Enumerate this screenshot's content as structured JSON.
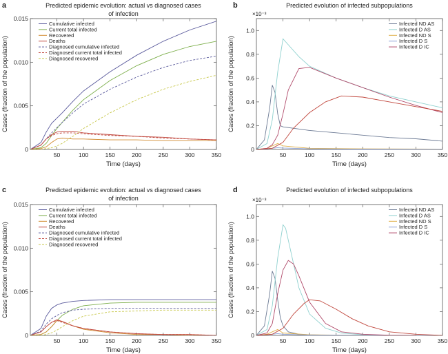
{
  "figure": {
    "width": 650,
    "height": 514
  },
  "colors": {
    "cumulative": "#5a5a9c",
    "current": "#7cae4a",
    "recovered": "#d08a2e",
    "deaths": "#c0463c",
    "nd_as": "#6c7a94",
    "d_as": "#8fd1cf",
    "nd_s": "#e0b04a",
    "d_s": "#8da2d6",
    "d_ic": "#b04a6a"
  },
  "chart_data": [
    {
      "id": "a",
      "type": "line",
      "panel": "a",
      "title": "Predicted epidemic evolution: actual vs diagnosed cases of infection",
      "title_lines": [
        "Predicted epidemic evolution: actual vs diagnosed cases",
        "of infection"
      ],
      "xlabel": "Time (days)",
      "ylabel": "Cases (fraction of the population)",
      "xlim": [
        0,
        350
      ],
      "ylim": [
        0,
        0.015
      ],
      "xticks": [
        50,
        100,
        150,
        200,
        250,
        300,
        350
      ],
      "yticks": [
        0,
        0.005,
        0.01,
        0.015
      ],
      "ytick_labels": [
        "0",
        "0.005",
        "0.010",
        "0.015"
      ],
      "exponent_label": "",
      "legend_position": "top-left",
      "series": [
        {
          "name": "Cumulative infected",
          "color": "#5a5a9c",
          "dash": false,
          "x": [
            0,
            20,
            30,
            40,
            50,
            60,
            80,
            100,
            150,
            200,
            250,
            300,
            350
          ],
          "y": [
            0,
            0.0008,
            0.002,
            0.003,
            0.0036,
            0.0042,
            0.0055,
            0.0067,
            0.0089,
            0.0108,
            0.0124,
            0.0137,
            0.0147
          ]
        },
        {
          "name": "Current total infected",
          "color": "#7cae4a",
          "dash": false,
          "x": [
            0,
            20,
            30,
            40,
            50,
            60,
            80,
            100,
            150,
            200,
            250,
            300,
            350
          ],
          "y": [
            0,
            0.0002,
            0.0007,
            0.0016,
            0.0024,
            0.0031,
            0.0045,
            0.0057,
            0.0079,
            0.0096,
            0.0109,
            0.0118,
            0.0124
          ]
        },
        {
          "name": "Recovered",
          "color": "#d08a2e",
          "dash": false,
          "x": [
            0,
            20,
            30,
            40,
            50,
            60,
            80,
            100,
            150,
            200,
            250,
            300,
            350
          ],
          "y": [
            0,
            0.0001,
            0.0003,
            0.0008,
            0.0012,
            0.0013,
            0.0012,
            0.0012,
            0.0011,
            0.0011,
            0.001,
            0.001,
            0.001
          ]
        },
        {
          "name": "Deaths",
          "color": "#c0463c",
          "dash": false,
          "x": [
            0,
            20,
            30,
            40,
            50,
            60,
            80,
            100,
            150,
            200,
            250,
            300,
            350
          ],
          "y": [
            0,
            0.0005,
            0.0012,
            0.0017,
            0.002,
            0.0021,
            0.0021,
            0.0019,
            0.0017,
            0.0015,
            0.0014,
            0.0012,
            0.0011
          ]
        },
        {
          "name": "Diagnosed cumulative infected",
          "color": "#5a5a9c",
          "dash": true,
          "x": [
            0,
            20,
            30,
            40,
            50,
            60,
            80,
            100,
            150,
            200,
            250,
            300,
            350
          ],
          "y": [
            0,
            0.0005,
            0.0012,
            0.0019,
            0.0025,
            0.0031,
            0.0042,
            0.0052,
            0.0069,
            0.0083,
            0.0094,
            0.0102,
            0.0107
          ]
        },
        {
          "name": "Diagnosed current total infected",
          "color": "#c0463c",
          "dash": true,
          "x": [
            0,
            20,
            30,
            40,
            50,
            60,
            80,
            100,
            150,
            200,
            250,
            300,
            350
          ],
          "y": [
            0,
            0.0005,
            0.0012,
            0.0016,
            0.0018,
            0.0019,
            0.0019,
            0.0018,
            0.0016,
            0.0015,
            0.0013,
            0.0012,
            0.0011
          ]
        },
        {
          "name": "Diagnosed recovered",
          "color": "#c8c84a",
          "dash": true,
          "x": [
            0,
            20,
            30,
            40,
            50,
            60,
            80,
            100,
            150,
            200,
            250,
            300,
            350
          ],
          "y": [
            0,
            0,
            0.0001,
            0.0002,
            0.0004,
            0.0007,
            0.0015,
            0.0024,
            0.0042,
            0.0057,
            0.0069,
            0.0078,
            0.0085
          ]
        }
      ]
    },
    {
      "id": "b",
      "type": "line",
      "panel": "b",
      "title": "Predicted evolution of infected subpopulations",
      "title_lines": [
        "Predicted evolution of infected subpopulations"
      ],
      "xlabel": "Time (days)",
      "ylabel": "Cases (fraction of the population)",
      "xlim": [
        0,
        350
      ],
      "ylim": [
        0,
        1.1
      ],
      "xticks": [
        50,
        100,
        150,
        200,
        250,
        300,
        350
      ],
      "yticks": [
        0,
        0.2,
        0.4,
        0.6,
        0.8,
        1.0
      ],
      "ytick_labels": [
        "0",
        "0.2",
        "0.4",
        "0.6",
        "0.8",
        "1.0"
      ],
      "exponent_label": "×10⁻³",
      "legend_position": "top-right",
      "series": [
        {
          "name": "Infected ND AS",
          "color": "#6c7a94",
          "dash": false,
          "x": [
            0,
            15,
            25,
            30,
            35,
            40,
            45,
            50,
            100,
            150,
            200,
            250,
            300,
            350
          ],
          "y": [
            0,
            0.08,
            0.35,
            0.54,
            0.48,
            0.3,
            0.2,
            0.19,
            0.16,
            0.14,
            0.12,
            0.1,
            0.09,
            0.07
          ]
        },
        {
          "name": "Infected D AS",
          "color": "#8fd1cf",
          "dash": false,
          "x": [
            0,
            20,
            30,
            40,
            50,
            60,
            80,
            100,
            150,
            200,
            250,
            300,
            350
          ],
          "y": [
            0,
            0.05,
            0.25,
            0.65,
            0.93,
            0.88,
            0.78,
            0.7,
            0.6,
            0.52,
            0.45,
            0.4,
            0.35
          ]
        },
        {
          "name": "Infected ND S",
          "color": "#e0b04a",
          "dash": false,
          "x": [
            0,
            20,
            30,
            40,
            50,
            100,
            200,
            350
          ],
          "y": [
            0,
            0.01,
            0.03,
            0.05,
            0.03,
            0.01,
            0.005,
            0.003
          ]
        },
        {
          "name": "Infected D S",
          "color": "#8da2d6",
          "dash": false,
          "x": [
            0,
            20,
            30,
            40,
            50,
            100,
            200,
            350
          ],
          "y": [
            0,
            0.005,
            0.01,
            0.015,
            0.012,
            0.005,
            0.003,
            0.002
          ]
        },
        {
          "name": "Infected D IC",
          "color": "#b04a6a",
          "dash": false,
          "x": [
            0,
            20,
            30,
            40,
            50,
            60,
            80,
            100,
            150,
            200,
            250,
            300,
            350
          ],
          "y": [
            0,
            0.01,
            0.04,
            0.12,
            0.3,
            0.5,
            0.68,
            0.69,
            0.6,
            0.52,
            0.44,
            0.37,
            0.31
          ]
        },
        {
          "name": "",
          "color": "#c0463c",
          "dash": false,
          "x": [
            0,
            30,
            50,
            70,
            100,
            130,
            160,
            200,
            250,
            300,
            350
          ],
          "y": [
            0,
            0.01,
            0.06,
            0.18,
            0.31,
            0.4,
            0.45,
            0.44,
            0.4,
            0.36,
            0.32
          ]
        }
      ]
    },
    {
      "id": "c",
      "type": "line",
      "panel": "c",
      "title": "Predicted epidemic evolution: actual vs diagnosed cases of infection",
      "title_lines": [
        "Predicted epidemic evolution: actual vs diagnosed cases",
        "of infection"
      ],
      "xlabel": "Time (days)",
      "ylabel": "Cases (fraction of the population)",
      "xlim": [
        0,
        350
      ],
      "ylim": [
        0,
        0.015
      ],
      "xticks": [
        50,
        100,
        150,
        200,
        250,
        300,
        350
      ],
      "yticks": [
        0,
        0.005,
        0.01,
        0.015
      ],
      "ytick_labels": [
        "0",
        "0.005",
        "0.010",
        "0.015"
      ],
      "exponent_label": "",
      "legend_position": "top-left",
      "series": [
        {
          "name": "Cumulative infected",
          "color": "#5a5a9c",
          "dash": false,
          "x": [
            0,
            20,
            30,
            40,
            50,
            60,
            80,
            100,
            150,
            200,
            250,
            300,
            350
          ],
          "y": [
            0,
            0.0008,
            0.0022,
            0.0031,
            0.0035,
            0.0037,
            0.0039,
            0.004,
            0.0041,
            0.0041,
            0.0041,
            0.0041,
            0.0041
          ]
        },
        {
          "name": "Current total infected",
          "color": "#7cae4a",
          "dash": false,
          "x": [
            0,
            20,
            30,
            40,
            50,
            60,
            80,
            100,
            150,
            200,
            250,
            300,
            350
          ],
          "y": [
            0,
            0.0001,
            0.0004,
            0.001,
            0.0017,
            0.0023,
            0.003,
            0.0034,
            0.0037,
            0.0038,
            0.0038,
            0.0038,
            0.0038
          ]
        },
        {
          "name": "Recovered",
          "color": "#d08a2e",
          "dash": false,
          "x": [
            0,
            20,
            30,
            40,
            50,
            60,
            80,
            100,
            150,
            200,
            250,
            300,
            350
          ],
          "y": [
            0,
            0.0001,
            0.0004,
            0.001,
            0.0017,
            0.0016,
            0.0011,
            0.0007,
            0.0003,
            0.0001,
            0.0001,
            0,
            0
          ]
        },
        {
          "name": "Deaths",
          "color": "#c0463c",
          "dash": false,
          "x": [
            0,
            20,
            30,
            40,
            50,
            60,
            80,
            100,
            150,
            200,
            250,
            300,
            350
          ],
          "y": [
            0,
            0.0004,
            0.001,
            0.0015,
            0.0018,
            0.0016,
            0.0011,
            0.0008,
            0.0004,
            0.0002,
            0.0001,
            0.0001,
            0
          ]
        },
        {
          "name": "Diagnosed cumulative infected",
          "color": "#5a5a9c",
          "dash": true,
          "x": [
            0,
            20,
            30,
            40,
            50,
            60,
            80,
            100,
            150,
            200,
            250,
            300,
            350
          ],
          "y": [
            0,
            0.0005,
            0.0013,
            0.0019,
            0.0023,
            0.0026,
            0.0029,
            0.003,
            0.0031,
            0.0031,
            0.0031,
            0.0031,
            0.0031
          ]
        },
        {
          "name": "Diagnosed current total infected",
          "color": "#c0463c",
          "dash": true,
          "x": [
            0,
            20,
            30,
            40,
            50,
            60,
            80,
            100,
            150,
            200,
            250,
            300,
            350
          ],
          "y": [
            0,
            0.0004,
            0.001,
            0.0015,
            0.0017,
            0.0015,
            0.0011,
            0.0008,
            0.0004,
            0.0002,
            0.0001,
            0.0001,
            0
          ]
        },
        {
          "name": "Diagnosed recovered",
          "color": "#c8c84a",
          "dash": true,
          "x": [
            0,
            20,
            30,
            40,
            50,
            60,
            80,
            100,
            150,
            200,
            250,
            300,
            350
          ],
          "y": [
            0,
            0,
            0.0001,
            0.0003,
            0.0006,
            0.001,
            0.0017,
            0.0022,
            0.0027,
            0.0028,
            0.0029,
            0.0029,
            0.0029
          ]
        }
      ]
    },
    {
      "id": "d",
      "type": "line",
      "panel": "d",
      "title": "Predicted evolution of infected subpopulations",
      "title_lines": [
        "Predicted evolution of infected subpopulations"
      ],
      "xlabel": "Time (days)",
      "ylabel": "Cases (fraction of the population)",
      "xlim": [
        0,
        350
      ],
      "ylim": [
        0,
        1.1
      ],
      "xticks": [
        50,
        100,
        150,
        200,
        250,
        300,
        350
      ],
      "yticks": [
        0,
        0.2,
        0.4,
        0.6,
        0.8,
        1.0
      ],
      "ytick_labels": [
        "0",
        "0.2",
        "0.4",
        "0.6",
        "0.8",
        "1.0"
      ],
      "exponent_label": "×10⁻³",
      "legend_position": "top-right",
      "series": [
        {
          "name": "Infected ND AS",
          "color": "#6c7a94",
          "dash": false,
          "x": [
            0,
            15,
            25,
            30,
            35,
            40,
            45,
            50,
            60,
            80,
            100,
            150
          ],
          "y": [
            0,
            0.08,
            0.35,
            0.54,
            0.48,
            0.3,
            0.15,
            0.08,
            0.03,
            0.01,
            0.005,
            0
          ]
        },
        {
          "name": "Infected D AS",
          "color": "#8fd1cf",
          "dash": false,
          "x": [
            0,
            20,
            30,
            40,
            50,
            55,
            60,
            70,
            80,
            100,
            130,
            160,
            200,
            250
          ],
          "y": [
            0,
            0.05,
            0.25,
            0.65,
            0.93,
            0.9,
            0.8,
            0.6,
            0.4,
            0.18,
            0.06,
            0.02,
            0.005,
            0
          ]
        },
        {
          "name": "Infected ND S",
          "color": "#e0b04a",
          "dash": false,
          "x": [
            0,
            20,
            30,
            40,
            50,
            100,
            200,
            350
          ],
          "y": [
            0,
            0.01,
            0.03,
            0.05,
            0.02,
            0.005,
            0.001,
            0
          ]
        },
        {
          "name": "Infected D S",
          "color": "#8da2d6",
          "dash": false,
          "x": [
            0,
            20,
            30,
            40,
            50,
            100,
            200,
            350
          ],
          "y": [
            0,
            0.005,
            0.01,
            0.015,
            0.01,
            0.003,
            0.001,
            0
          ]
        },
        {
          "name": "Infected D IC",
          "color": "#b04a6a",
          "dash": false,
          "x": [
            0,
            20,
            30,
            40,
            50,
            60,
            70,
            80,
            100,
            130,
            160,
            200,
            250,
            300
          ],
          "y": [
            0,
            0.02,
            0.1,
            0.35,
            0.55,
            0.63,
            0.6,
            0.5,
            0.28,
            0.1,
            0.03,
            0.01,
            0.002,
            0
          ]
        },
        {
          "name": "",
          "color": "#c0463c",
          "dash": false,
          "x": [
            0,
            30,
            50,
            70,
            90,
            100,
            120,
            150,
            180,
            210,
            250,
            300,
            350
          ],
          "y": [
            0,
            0.01,
            0.06,
            0.18,
            0.27,
            0.3,
            0.29,
            0.22,
            0.14,
            0.08,
            0.03,
            0.01,
            0
          ]
        }
      ]
    }
  ]
}
